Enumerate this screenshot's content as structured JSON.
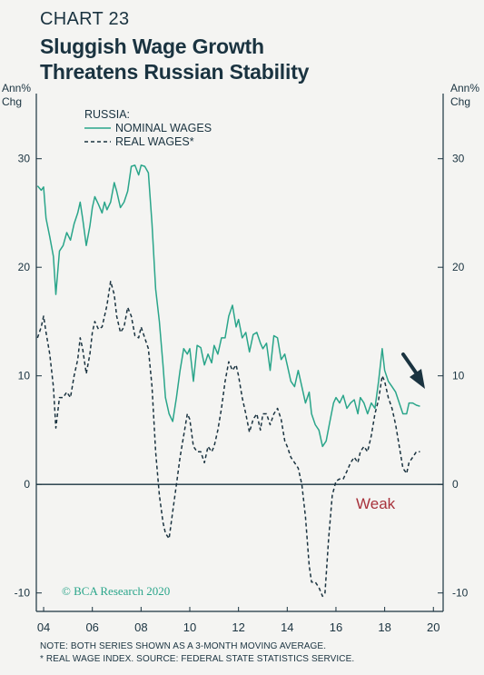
{
  "chart_number": "CHART 23",
  "title_lines": [
    "Sluggish Wage Growth",
    "Threatens Russian Stability"
  ],
  "left_unit": "Ann%\nChg",
  "right_unit": "Ann%\nChg",
  "legend": {
    "header": "RUSSIA:",
    "items": [
      {
        "label": "NOMINAL WAGES",
        "color": "#2aa58a",
        "dash": "solid"
      },
      {
        "label": "REAL WAGES*",
        "color": "#1a3340",
        "dash": "dashed"
      }
    ]
  },
  "annotation": {
    "text": "Weak",
    "color": "#a8323c"
  },
  "copyright": "© BCA Research 2020",
  "footnotes": [
    "NOTE: BOTH SERIES SHOWN AS A 3-MONTH MOVING AVERAGE.",
    "* REAL WAGE INDEX. SOURCE: FEDERAL STATE STATISTICS SERVICE."
  ],
  "chart_data": {
    "type": "line",
    "xlim": [
      2003.7,
      2020.4
    ],
    "ylim": [
      -11.7,
      36
    ],
    "x_ticks": [
      {
        "v": 2004,
        "label": "04"
      },
      {
        "v": 2006,
        "label": "06"
      },
      {
        "v": 2008,
        "label": "08"
      },
      {
        "v": 2010,
        "label": "10"
      },
      {
        "v": 2012,
        "label": "12"
      },
      {
        "v": 2014,
        "label": "14"
      },
      {
        "v": 2016,
        "label": "16"
      },
      {
        "v": 2018,
        "label": "18"
      },
      {
        "v": 2020,
        "label": "20"
      }
    ],
    "y_ticks": [
      -10,
      0,
      10,
      20,
      30
    ],
    "zero_line": true,
    "series": [
      {
        "name": "NOMINAL WAGES",
        "color": "#2aa58a",
        "dash": "solid",
        "points": [
          [
            2003.75,
            27.5
          ],
          [
            2003.9,
            27.1
          ],
          [
            2004.0,
            27.4
          ],
          [
            2004.1,
            24.5
          ],
          [
            2004.25,
            22.8
          ],
          [
            2004.4,
            21.0
          ],
          [
            2004.5,
            17.5
          ],
          [
            2004.65,
            21.5
          ],
          [
            2004.8,
            22.0
          ],
          [
            2004.95,
            23.2
          ],
          [
            2005.1,
            22.5
          ],
          [
            2005.25,
            24.0
          ],
          [
            2005.4,
            25.0
          ],
          [
            2005.5,
            26.0
          ],
          [
            2005.6,
            24.5
          ],
          [
            2005.75,
            22.0
          ],
          [
            2005.9,
            23.8
          ],
          [
            2006.0,
            25.5
          ],
          [
            2006.1,
            26.5
          ],
          [
            2006.25,
            25.8
          ],
          [
            2006.4,
            25.0
          ],
          [
            2006.5,
            26.0
          ],
          [
            2006.6,
            25.3
          ],
          [
            2006.75,
            26.0
          ],
          [
            2006.9,
            27.8
          ],
          [
            2007.0,
            27.0
          ],
          [
            2007.15,
            25.5
          ],
          [
            2007.3,
            26.0
          ],
          [
            2007.45,
            27.0
          ],
          [
            2007.6,
            29.3
          ],
          [
            2007.75,
            29.4
          ],
          [
            2007.9,
            28.5
          ],
          [
            2008.0,
            29.4
          ],
          [
            2008.15,
            29.3
          ],
          [
            2008.3,
            28.7
          ],
          [
            2008.45,
            24.0
          ],
          [
            2008.6,
            18.0
          ],
          [
            2008.75,
            15.0
          ],
          [
            2008.9,
            11.0
          ],
          [
            2009.0,
            8.0
          ],
          [
            2009.15,
            6.5
          ],
          [
            2009.3,
            5.8
          ],
          [
            2009.45,
            8.0
          ],
          [
            2009.6,
            10.5
          ],
          [
            2009.75,
            12.5
          ],
          [
            2009.9,
            12.0
          ],
          [
            2010.0,
            12.5
          ],
          [
            2010.15,
            9.5
          ],
          [
            2010.3,
            12.8
          ],
          [
            2010.45,
            12.6
          ],
          [
            2010.6,
            11.0
          ],
          [
            2010.75,
            12.0
          ],
          [
            2010.9,
            11.2
          ],
          [
            2011.0,
            12.8
          ],
          [
            2011.15,
            12.0
          ],
          [
            2011.3,
            13.5
          ],
          [
            2011.45,
            13.5
          ],
          [
            2011.6,
            15.5
          ],
          [
            2011.75,
            16.5
          ],
          [
            2011.9,
            14.5
          ],
          [
            2012.0,
            15.2
          ],
          [
            2012.15,
            13.5
          ],
          [
            2012.3,
            14.0
          ],
          [
            2012.45,
            12.2
          ],
          [
            2012.6,
            13.8
          ],
          [
            2012.75,
            14.0
          ],
          [
            2012.9,
            13.0
          ],
          [
            2013.0,
            12.5
          ],
          [
            2013.15,
            13.0
          ],
          [
            2013.3,
            10.5
          ],
          [
            2013.45,
            13.7
          ],
          [
            2013.6,
            13.5
          ],
          [
            2013.75,
            11.5
          ],
          [
            2013.9,
            12.0
          ],
          [
            2014.0,
            11.0
          ],
          [
            2014.15,
            9.5
          ],
          [
            2014.3,
            9.0
          ],
          [
            2014.45,
            10.5
          ],
          [
            2014.6,
            9.0
          ],
          [
            2014.75,
            7.5
          ],
          [
            2014.9,
            8.5
          ],
          [
            2015.0,
            6.5
          ],
          [
            2015.15,
            5.5
          ],
          [
            2015.3,
            5.0
          ],
          [
            2015.45,
            3.5
          ],
          [
            2015.6,
            4.0
          ],
          [
            2015.75,
            5.8
          ],
          [
            2015.9,
            7.5
          ],
          [
            2016.0,
            8.0
          ],
          [
            2016.15,
            7.5
          ],
          [
            2016.3,
            8.2
          ],
          [
            2016.45,
            7.0
          ],
          [
            2016.6,
            7.5
          ],
          [
            2016.75,
            7.8
          ],
          [
            2016.9,
            6.5
          ],
          [
            2017.0,
            8.0
          ],
          [
            2017.15,
            7.5
          ],
          [
            2017.3,
            6.5
          ],
          [
            2017.45,
            7.5
          ],
          [
            2017.6,
            7.0
          ],
          [
            2017.75,
            9.5
          ],
          [
            2017.9,
            12.5
          ],
          [
            2018.0,
            10.5
          ],
          [
            2018.15,
            9.5
          ],
          [
            2018.3,
            9.0
          ],
          [
            2018.45,
            8.5
          ],
          [
            2018.6,
            7.5
          ],
          [
            2018.75,
            6.5
          ],
          [
            2018.9,
            6.5
          ],
          [
            2019.0,
            7.5
          ],
          [
            2019.15,
            7.5
          ],
          [
            2019.3,
            7.3
          ],
          [
            2019.45,
            7.2
          ]
        ]
      },
      {
        "name": "REAL WAGES*",
        "color": "#1a3340",
        "dash": "dashed",
        "points": [
          [
            2003.75,
            13.5
          ],
          [
            2003.9,
            14.5
          ],
          [
            2004.0,
            15.5
          ],
          [
            2004.1,
            14.0
          ],
          [
            2004.25,
            12.0
          ],
          [
            2004.4,
            9.0
          ],
          [
            2004.5,
            5.2
          ],
          [
            2004.65,
            8.0
          ],
          [
            2004.8,
            8.0
          ],
          [
            2004.95,
            8.5
          ],
          [
            2005.1,
            8.0
          ],
          [
            2005.25,
            10.0
          ],
          [
            2005.4,
            11.5
          ],
          [
            2005.5,
            13.5
          ],
          [
            2005.6,
            12.5
          ],
          [
            2005.75,
            10.2
          ],
          [
            2005.9,
            12.0
          ],
          [
            2006.0,
            14.0
          ],
          [
            2006.1,
            15.0
          ],
          [
            2006.25,
            14.3
          ],
          [
            2006.4,
            14.5
          ],
          [
            2006.5,
            15.5
          ],
          [
            2006.6,
            16.5
          ],
          [
            2006.75,
            18.7
          ],
          [
            2006.9,
            17.5
          ],
          [
            2007.0,
            15.5
          ],
          [
            2007.15,
            14.0
          ],
          [
            2007.3,
            14.5
          ],
          [
            2007.45,
            16.3
          ],
          [
            2007.6,
            15.5
          ],
          [
            2007.75,
            13.7
          ],
          [
            2007.9,
            13.5
          ],
          [
            2008.0,
            14.5
          ],
          [
            2008.15,
            13.5
          ],
          [
            2008.3,
            12.5
          ],
          [
            2008.45,
            9.0
          ],
          [
            2008.6,
            3.0
          ],
          [
            2008.75,
            -1.0
          ],
          [
            2008.9,
            -3.5
          ],
          [
            2009.0,
            -4.5
          ],
          [
            2009.15,
            -5.0
          ],
          [
            2009.3,
            -2.5
          ],
          [
            2009.45,
            0.0
          ],
          [
            2009.6,
            2.5
          ],
          [
            2009.75,
            4.5
          ],
          [
            2009.9,
            6.5
          ],
          [
            2010.0,
            6.0
          ],
          [
            2010.15,
            3.5
          ],
          [
            2010.3,
            3.0
          ],
          [
            2010.45,
            3.0
          ],
          [
            2010.6,
            2.0
          ],
          [
            2010.75,
            3.5
          ],
          [
            2010.9,
            3.0
          ],
          [
            2011.0,
            3.5
          ],
          [
            2011.15,
            5.0
          ],
          [
            2011.3,
            7.0
          ],
          [
            2011.45,
            9.5
          ],
          [
            2011.6,
            11.3
          ],
          [
            2011.75,
            10.5
          ],
          [
            2011.9,
            11.0
          ],
          [
            2012.0,
            10.0
          ],
          [
            2012.15,
            8.0
          ],
          [
            2012.3,
            6.5
          ],
          [
            2012.45,
            4.8
          ],
          [
            2012.6,
            6.0
          ],
          [
            2012.75,
            6.5
          ],
          [
            2012.9,
            5.0
          ],
          [
            2013.0,
            6.5
          ],
          [
            2013.15,
            6.5
          ],
          [
            2013.3,
            5.5
          ],
          [
            2013.45,
            6.5
          ],
          [
            2013.6,
            7.0
          ],
          [
            2013.75,
            6.0
          ],
          [
            2013.9,
            4.0
          ],
          [
            2014.0,
            3.5
          ],
          [
            2014.15,
            2.5
          ],
          [
            2014.3,
            2.0
          ],
          [
            2014.45,
            1.5
          ],
          [
            2014.6,
            0.0
          ],
          [
            2014.75,
            -3.0
          ],
          [
            2014.9,
            -7.5
          ],
          [
            2015.0,
            -9.0
          ],
          [
            2015.15,
            -9.0
          ],
          [
            2015.3,
            -9.5
          ],
          [
            2015.45,
            -10.3
          ],
          [
            2015.55,
            -10.0
          ],
          [
            2015.7,
            -5.0
          ],
          [
            2015.85,
            -1.0
          ],
          [
            2016.0,
            0.3
          ],
          [
            2016.15,
            0.5
          ],
          [
            2016.3,
            0.5
          ],
          [
            2016.45,
            1.2
          ],
          [
            2016.6,
            2.0
          ],
          [
            2016.75,
            2.5
          ],
          [
            2016.9,
            2.0
          ],
          [
            2017.0,
            3.0
          ],
          [
            2017.15,
            3.5
          ],
          [
            2017.3,
            3.0
          ],
          [
            2017.45,
            4.5
          ],
          [
            2017.6,
            6.5
          ],
          [
            2017.75,
            7.8
          ],
          [
            2017.9,
            10.0
          ],
          [
            2018.0,
            9.5
          ],
          [
            2018.15,
            8.0
          ],
          [
            2018.3,
            7.0
          ],
          [
            2018.45,
            5.5
          ],
          [
            2018.6,
            3.5
          ],
          [
            2018.75,
            1.5
          ],
          [
            2018.9,
            1.0
          ],
          [
            2019.0,
            2.0
          ],
          [
            2019.15,
            2.5
          ],
          [
            2019.3,
            3.0
          ],
          [
            2019.45,
            3.0
          ]
        ]
      }
    ]
  }
}
